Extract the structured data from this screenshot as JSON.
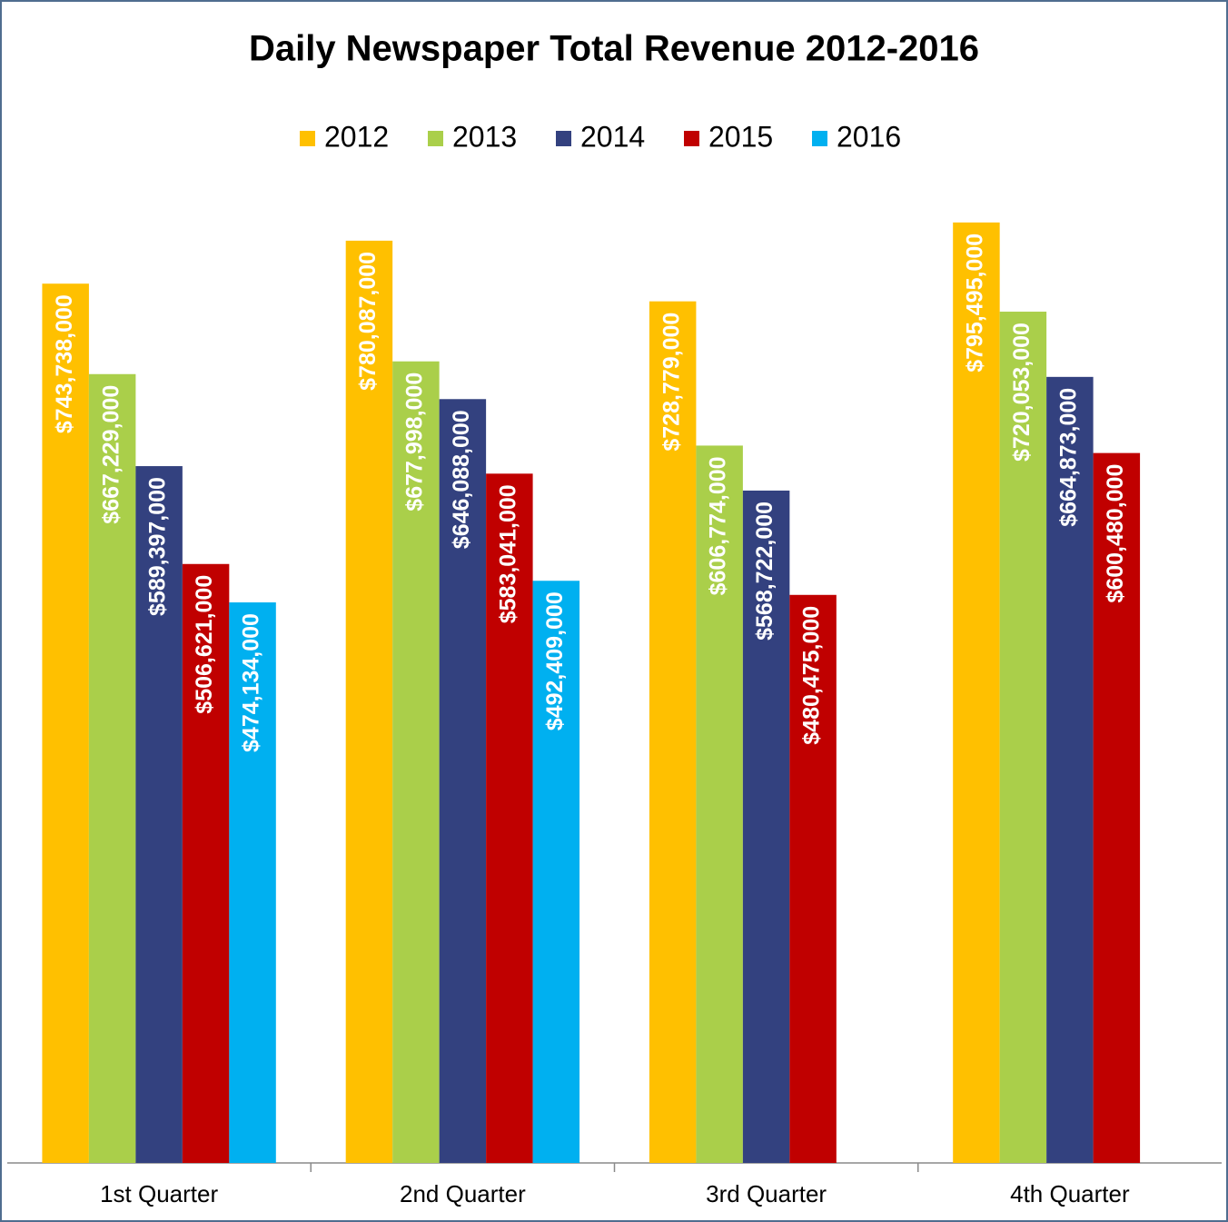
{
  "chart_data": {
    "type": "bar",
    "title": "Daily Newspaper Total Revenue 2012-2016",
    "categories": [
      "1st Quarter",
      "2nd Quarter",
      "3rd Quarter",
      "4th Quarter"
    ],
    "series": [
      {
        "name": "2012",
        "color": "#FFC000",
        "values": [
          743738000,
          780087000,
          728779000,
          795495000
        ],
        "value_labels": [
          "$743,738,000",
          "$780,087,000",
          "$728,779,000",
          "$795,495,000"
        ]
      },
      {
        "name": "2013",
        "color": "#AACF4A",
        "values": [
          667229000,
          677998000,
          606774000,
          720053000
        ],
        "value_labels": [
          "$667,229,000",
          "$677,998,000",
          "$606,774,000",
          "$720,053,000"
        ]
      },
      {
        "name": "2014",
        "color": "#33417F",
        "values": [
          589397000,
          646088000,
          568722000,
          664873000
        ],
        "value_labels": [
          "$589,397,000",
          "$646,088,000",
          "$568,722,000",
          "$664,873,000"
        ]
      },
      {
        "name": "2015",
        "color": "#C00000",
        "values": [
          506621000,
          583041000,
          480475000,
          600480000
        ],
        "value_labels": [
          "$506,621,000",
          "$583,041,000",
          "$480,475,000",
          "$600,480,000"
        ]
      },
      {
        "name": "2016",
        "color": "#00B0F0",
        "values": [
          474134000,
          492409000,
          null,
          null
        ],
        "value_labels": [
          "$474,134,000",
          "$492,409,000",
          null,
          null
        ]
      }
    ],
    "ylim": [
      0,
      800000000
    ],
    "legend": "top"
  }
}
